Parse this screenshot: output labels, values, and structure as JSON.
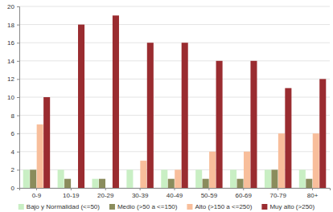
{
  "chart_data": {
    "type": "bar",
    "categories": [
      "0-9",
      "10-19",
      "20-29",
      "30-39",
      "40-49",
      "50-59",
      "60-69",
      "70-79",
      "80+"
    ],
    "series": [
      {
        "name": "Bajo y Normalidad (<=50)",
        "color": "#c9efc4",
        "values": [
          2,
          2,
          1,
          2,
          2,
          2,
          2,
          2,
          2
        ]
      },
      {
        "name": "Medio (>50 a <=150)",
        "color": "#8a8c5c",
        "values": [
          2,
          1,
          1,
          0,
          1,
          1,
          1,
          2,
          1
        ]
      },
      {
        "name": "Alto (>150 a <=250)",
        "color": "#f8be9b",
        "values": [
          7,
          0,
          0,
          3,
          2,
          4,
          4,
          6,
          6
        ]
      },
      {
        "name": "Muy alto (>250)",
        "color": "#9a2c30",
        "values": [
          10,
          18,
          19,
          16,
          16,
          14,
          14,
          11,
          12
        ]
      }
    ],
    "ylim": [
      0,
      20
    ],
    "yticks": [
      0,
      2,
      4,
      6,
      8,
      10,
      12,
      14,
      16,
      18,
      20
    ],
    "grid": true,
    "legend": "bottom"
  }
}
